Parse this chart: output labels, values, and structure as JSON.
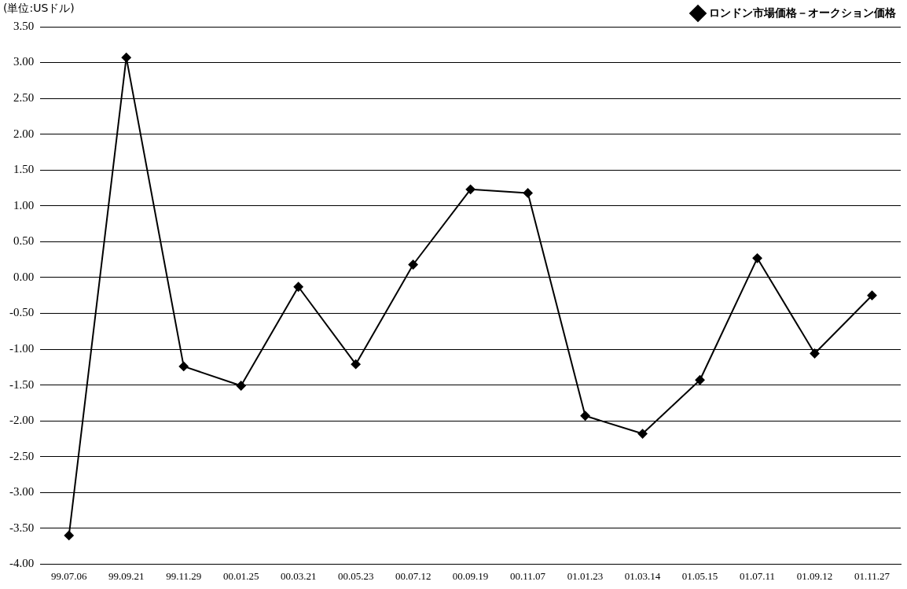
{
  "chart_data": {
    "type": "line",
    "ylabel": "(単位:USドル)",
    "categories": [
      "99.07.06",
      "99.09.21",
      "99.11.29",
      "00.01.25",
      "00.03.21",
      "00.05.23",
      "00.07.12",
      "00.09.19",
      "00.11.07",
      "01.01.23",
      "01.03.14",
      "01.05.15",
      "01.07.11",
      "01.09.12",
      "01.11.27"
    ],
    "series": [
      {
        "name": "ロンドン市場価格－オークション価格",
        "color": "#000000",
        "values": [
          -3.6,
          3.07,
          -1.24,
          -1.51,
          -0.13,
          -1.21,
          0.18,
          1.23,
          1.18,
          -1.93,
          -2.18,
          -1.43,
          0.27,
          -1.06,
          -0.25
        ]
      }
    ],
    "ylim": [
      -4,
      3.5
    ],
    "yticks": [
      {
        "value": -4,
        "label": "-4.00"
      },
      {
        "value": -3.5,
        "label": "-3.50"
      },
      {
        "value": -3,
        "label": "-3.00"
      },
      {
        "value": -2.5,
        "label": "-2.50"
      },
      {
        "value": -2,
        "label": "-2.00"
      },
      {
        "value": -1.5,
        "label": "-1.50"
      },
      {
        "value": -1,
        "label": "-1.00"
      },
      {
        "value": -0.5,
        "label": "-0.50"
      },
      {
        "value": 0,
        "label": "0.00"
      },
      {
        "value": 0.5,
        "label": "0.50"
      },
      {
        "value": 1,
        "label": "1.00"
      },
      {
        "value": 1.5,
        "label": "1.50"
      },
      {
        "value": 2,
        "label": "2.00"
      },
      {
        "value": 2.5,
        "label": "2.50"
      },
      {
        "value": 3,
        "label": "3.00"
      },
      {
        "value": 3.5,
        "label": "3.50"
      }
    ],
    "grid": "y",
    "legend": "top right",
    "marker": "diamond",
    "line_style": "solid"
  }
}
